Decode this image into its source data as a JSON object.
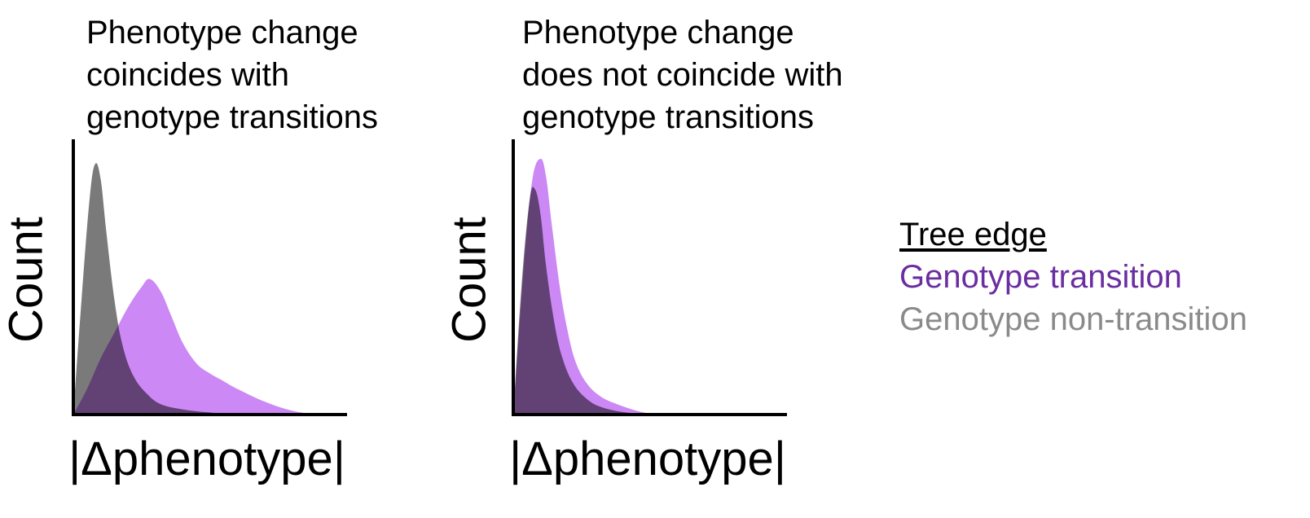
{
  "chart_data": [
    {
      "type": "area",
      "title_lines": [
        "Phenotype change",
        "coincides with",
        "genotype transitions"
      ],
      "xlabel": "|Δphenotype|",
      "ylabel": "Count",
      "xlim": [
        0,
        1
      ],
      "ylim": [
        0,
        1
      ],
      "grid": false,
      "series": [
        {
          "name": "Genotype transition",
          "color": "#cc88f5",
          "x": [
            0,
            0.05,
            0.1,
            0.15,
            0.2,
            0.25,
            0.28,
            0.32,
            0.36,
            0.4,
            0.45,
            0.5,
            0.55,
            0.6,
            0.7,
            0.8,
            0.9,
            1.0
          ],
          "values": [
            0,
            0.1,
            0.22,
            0.32,
            0.42,
            0.5,
            0.53,
            0.48,
            0.38,
            0.28,
            0.2,
            0.16,
            0.13,
            0.1,
            0.05,
            0.015,
            0,
            0
          ]
        },
        {
          "name": "Genotype non-transition",
          "color": "#7a7a7a",
          "x": [
            0,
            0.03,
            0.06,
            0.08,
            0.1,
            0.12,
            0.15,
            0.18,
            0.22,
            0.27,
            0.32,
            0.4,
            0.5,
            0.6,
            0.7
          ],
          "values": [
            0,
            0.45,
            0.85,
            0.98,
            0.92,
            0.72,
            0.45,
            0.27,
            0.15,
            0.08,
            0.04,
            0.02,
            0.008,
            0.002,
            0
          ]
        }
      ]
    },
    {
      "type": "area",
      "title_lines": [
        "Phenotype change",
        "does not coincide with",
        "genotype transitions"
      ],
      "xlabel": "|Δphenotype|",
      "ylabel": "Count",
      "xlim": [
        0,
        1
      ],
      "ylim": [
        0,
        1
      ],
      "grid": false,
      "series": [
        {
          "name": "Genotype transition",
          "color": "#cc88f5",
          "x": [
            0,
            0.04,
            0.07,
            0.1,
            0.12,
            0.14,
            0.17,
            0.2,
            0.23,
            0.27,
            0.32,
            0.38,
            0.45,
            0.5,
            0.55
          ],
          "values": [
            0,
            0.6,
            0.92,
            1.0,
            0.93,
            0.75,
            0.5,
            0.32,
            0.2,
            0.12,
            0.07,
            0.04,
            0.015,
            0.004,
            0
          ]
        },
        {
          "name": "Genotype non-transition",
          "color": "#7a7a7a",
          "x": [
            0,
            0.03,
            0.06,
            0.08,
            0.1,
            0.12,
            0.15,
            0.18,
            0.22,
            0.27,
            0.32,
            0.4,
            0.5
          ],
          "values": [
            0,
            0.5,
            0.84,
            0.88,
            0.78,
            0.58,
            0.36,
            0.22,
            0.12,
            0.06,
            0.03,
            0.01,
            0
          ]
        }
      ]
    }
  ],
  "legend": {
    "title": "Tree edge",
    "items": [
      {
        "label": "Genotype transition",
        "color": "#6a2ea0"
      },
      {
        "label": "Genotype non-transition",
        "color": "#8a8a8a"
      }
    ]
  },
  "overlap_color": "#8e4fbf"
}
